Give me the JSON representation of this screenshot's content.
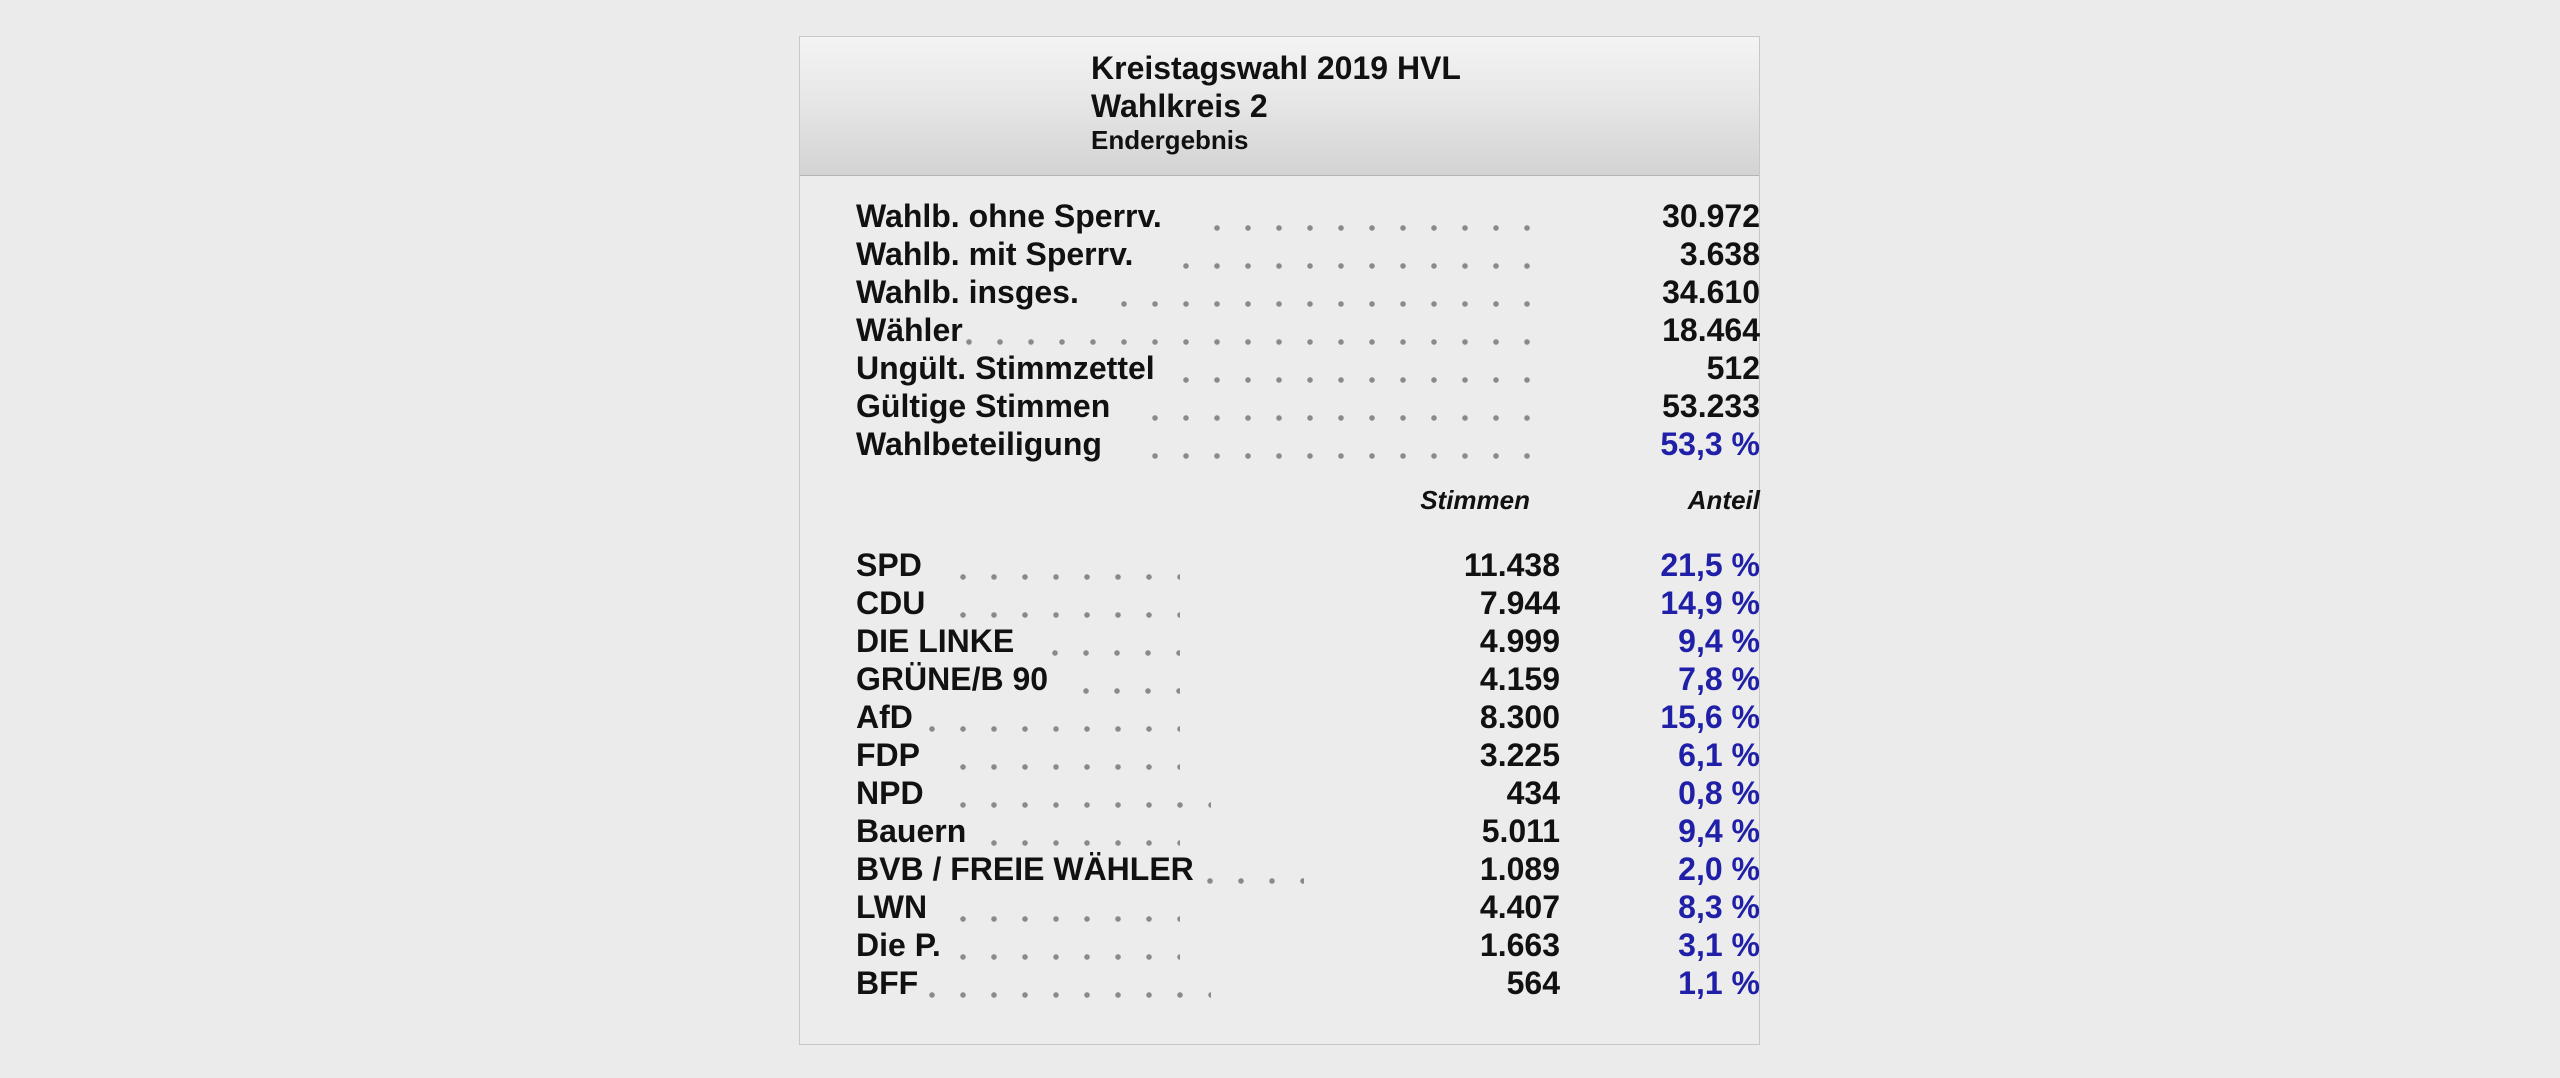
{
  "header": {
    "title": "Kreistagswahl 2019 HVL",
    "subtitle": "Wahlkreis 2",
    "status": "Endergebnis"
  },
  "summary": [
    {
      "label": "Wahlb. ohne Sperrv.",
      "value": "30.972"
    },
    {
      "label": "Wahlb. mit Sperrv.",
      "value": "3.638"
    },
    {
      "label": "Wahlb. insges.",
      "value": "34.610"
    },
    {
      "label": "Wähler",
      "value": "18.464"
    },
    {
      "label": "Ungült. Stimmzettel",
      "value": "512"
    },
    {
      "label": "Gültige Stimmen",
      "value": "53.233"
    },
    {
      "label": "Wahlbeteiligung",
      "value": "53,3 %"
    }
  ],
  "columns": {
    "votes": "Stimmen",
    "share": "Anteil"
  },
  "parties": [
    {
      "name": "SPD",
      "votes": "11.438",
      "share": "21,5 %"
    },
    {
      "name": "CDU",
      "votes": "7.944",
      "share": "14,9 %"
    },
    {
      "name": "DIE LINKE",
      "votes": "4.999",
      "share": "9,4 %"
    },
    {
      "name": "GRÜNE/B 90",
      "votes": "4.159",
      "share": "7,8 %"
    },
    {
      "name": "AfD",
      "votes": "8.300",
      "share": "15,6 %"
    },
    {
      "name": "FDP",
      "votes": "3.225",
      "share": "6,1 %"
    },
    {
      "name": "NPD",
      "votes": "434",
      "share": "0,8 %"
    },
    {
      "name": "Bauern",
      "votes": "5.011",
      "share": "9,4 %"
    },
    {
      "name": "BVB / FREIE WÄHLER",
      "votes": "1.089",
      "share": "2,0 %"
    },
    {
      "name": "LWN",
      "votes": "4.407",
      "share": "8,3 %"
    },
    {
      "name": "Die P.",
      "votes": "1.663",
      "share": "3,1 %"
    },
    {
      "name": "BFF",
      "votes": "564",
      "share": "1,1 %"
    }
  ],
  "colors": {
    "percent_text": "#1f1fa8",
    "page_background": "#ebebeb"
  }
}
